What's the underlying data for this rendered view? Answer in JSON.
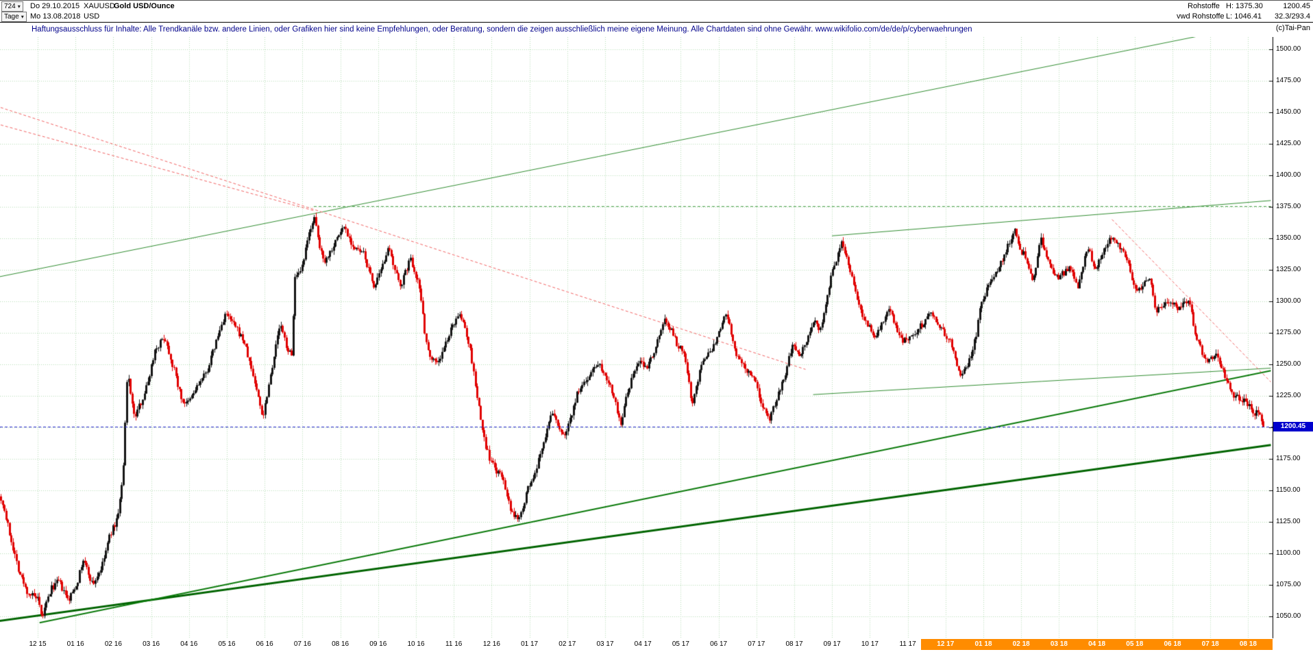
{
  "icons": {
    "caret_down": "▾"
  },
  "header": {
    "bars_count": "724",
    "date_from": "Do 29.10.2015",
    "symbol": "XAUUSD",
    "instrument": "Gold USD/Ounce",
    "period": "Tage",
    "date_to": "Mo 13.08.2018",
    "currency": "USD",
    "right": {
      "category": "Rohstoffe",
      "high_text": "H: 1375.30",
      "last": "1200.45",
      "source": "vwd Rohstoffe",
      "low_text": "L: 1046.41",
      "stat": "32.3/293.4",
      "copyright": "(c)Tai-Pan"
    },
    "disclaimer_text": "Haftungsausschluss für Inhalte: Alle Trendkanäle bzw. andere Linien, oder Grafiken hier sind keine Empfehlungen, oder Beratung, sondern die zeigen ausschließlich meine eigene Meinung. Alle Chartdaten sind ohne Gewähr.",
    "disclaimer_link": "www.wikifolio.com/de/de/p/cyberwaehrungen"
  },
  "chart_data": {
    "type": "candlestick",
    "title": "Gold USD/Ounce (XAUUSD) Tageschart 29.10.2015 - 13.08.2018",
    "bars": 724,
    "high": 1375.3,
    "low": 1046.41,
    "last_price": 1200.45,
    "last_price_label": "1200.45",
    "colors": {
      "up": "#141414",
      "down": "#e00000",
      "grid": "#b4dcb4",
      "last_line": "#2222cc"
    },
    "y_axis": {
      "min": 1040,
      "max": 1512,
      "tick_step": 25
    },
    "y_ticks": [
      "1500.00",
      "1475.00",
      "1450.00",
      "1425.00",
      "1400.00",
      "1375.00",
      "1350.00",
      "1325.00",
      "1300.00",
      "1275.00",
      "1250.00",
      "1225.00",
      "1200.00",
      "1175.00",
      "1150.00",
      "1125.00",
      "1100.00",
      "1075.00",
      "1050.00"
    ],
    "x_labels": [
      "12 15",
      "01 16",
      "02 16",
      "03 16",
      "04 16",
      "05 16",
      "06 16",
      "07 16",
      "08 16",
      "09 16",
      "10 16",
      "11 16",
      "12 16",
      "01 17",
      "02 17",
      "03 17",
      "04 17",
      "05 17",
      "06 17",
      "07 17",
      "08 17",
      "09 17",
      "10 17",
      "11 17",
      "12 17",
      "01 18",
      "02 18",
      "03 18",
      "04 18",
      "05 18",
      "06 18",
      "07 18",
      "08 18"
    ],
    "x_highlight_start_index": 24,
    "x_highlight_color": "#ff8c00",
    "trendlines": [
      {
        "name": "long-term-support",
        "color": "#006400",
        "width": 3,
        "style": "solid",
        "from": [
          -1.1,
          1046
        ],
        "to": [
          32.6,
          1186
        ]
      },
      {
        "name": "support-dec2015-dec2016",
        "color": "#0b7a0b",
        "width": 2,
        "style": "solid",
        "from": [
          0.05,
          1045
        ],
        "to": [
          32.6,
          1245
        ]
      },
      {
        "name": "rising-channel-upper",
        "color": "#2e8b2e",
        "width": 1,
        "style": "solid",
        "from": [
          -1.1,
          1319
        ],
        "to": [
          32.6,
          1522
        ]
      },
      {
        "name": "resistance-sep17-jan18-highs",
        "color": "#2e8b2e",
        "width": 1,
        "style": "solid",
        "from": [
          21.0,
          1352
        ],
        "to": [
          32.6,
          1380
        ]
      },
      {
        "name": "wedge-lower-line",
        "color": "#2e8b2e",
        "width": 1,
        "style": "solid",
        "from": [
          20.5,
          1226
        ],
        "to": [
          32.6,
          1247
        ]
      },
      {
        "name": "high-1375-resistance",
        "color": "#4aa04a",
        "width": 1,
        "style": "dashed",
        "from": [
          7.3,
          1375.3
        ],
        "to": [
          32.6,
          1375.3
        ]
      },
      {
        "name": "falling-trendline-1",
        "color": "#f06060",
        "width": 1,
        "style": "dashed",
        "from": [
          -1.1,
          1455
        ],
        "to": [
          20.3,
          1246
        ]
      },
      {
        "name": "falling-trendline-2",
        "color": "#f06060",
        "width": 1,
        "style": "dashed",
        "from": [
          -1.1,
          1441
        ],
        "to": [
          7.3,
          1372
        ]
      },
      {
        "name": "falling-trendline-right",
        "color": "#f06060",
        "width": 1,
        "style": "dashed",
        "from": [
          28.4,
          1365
        ],
        "to": [
          32.6,
          1236
        ]
      }
    ],
    "hline_last": {
      "price": 1200.45,
      "color": "#2222cc",
      "style": "dashed"
    },
    "anchors": [
      [
        -1.07,
        1147
      ],
      [
        -0.95,
        1142
      ],
      [
        -0.7,
        1110
      ],
      [
        -0.5,
        1086
      ],
      [
        -0.3,
        1070
      ],
      [
        0,
        1063
      ],
      [
        0.1,
        1048
      ],
      [
        0.35,
        1072
      ],
      [
        0.55,
        1078
      ],
      [
        0.8,
        1062
      ],
      [
        1.05,
        1078
      ],
      [
        1.2,
        1095
      ],
      [
        1.45,
        1075
      ],
      [
        1.7,
        1090
      ],
      [
        1.9,
        1114
      ],
      [
        2.1,
        1128
      ],
      [
        2.25,
        1160
      ],
      [
        2.37,
        1245
      ],
      [
        2.55,
        1207
      ],
      [
        2.75,
        1222
      ],
      [
        2.9,
        1235
      ],
      [
        3.1,
        1262
      ],
      [
        3.35,
        1272
      ],
      [
        3.6,
        1246
      ],
      [
        3.8,
        1222
      ],
      [
        3.95,
        1218
      ],
      [
        4.2,
        1232
      ],
      [
        4.45,
        1243
      ],
      [
        4.65,
        1262
      ],
      [
        4.95,
        1290
      ],
      [
        5.15,
        1283
      ],
      [
        5.45,
        1268
      ],
      [
        5.7,
        1240
      ],
      [
        5.95,
        1208
      ],
      [
        6.15,
        1242
      ],
      [
        6.4,
        1282
      ],
      [
        6.6,
        1262
      ],
      [
        6.72,
        1256
      ],
      [
        6.78,
        1318
      ],
      [
        6.95,
        1322
      ],
      [
        7.2,
        1358
      ],
      [
        7.3,
        1367
      ],
      [
        7.45,
        1342
      ],
      [
        7.6,
        1332
      ],
      [
        7.9,
        1350
      ],
      [
        8.1,
        1360
      ],
      [
        8.35,
        1342
      ],
      [
        8.6,
        1338
      ],
      [
        8.9,
        1311
      ],
      [
        9.1,
        1326
      ],
      [
        9.25,
        1344
      ],
      [
        9.45,
        1322
      ],
      [
        9.6,
        1313
      ],
      [
        9.85,
        1334
      ],
      [
        10.05,
        1316
      ],
      [
        10.18,
        1292
      ],
      [
        10.25,
        1268
      ],
      [
        10.4,
        1255
      ],
      [
        10.6,
        1252
      ],
      [
        10.85,
        1272
      ],
      [
        11.1,
        1290
      ],
      [
        11.28,
        1281
      ],
      [
        11.45,
        1258
      ],
      [
        11.6,
        1226
      ],
      [
        11.8,
        1190
      ],
      [
        11.95,
        1174
      ],
      [
        12.15,
        1164
      ],
      [
        12.3,
        1160
      ],
      [
        12.5,
        1132
      ],
      [
        12.68,
        1128
      ],
      [
        12.85,
        1140
      ],
      [
        12.95,
        1152
      ],
      [
        13.15,
        1162
      ],
      [
        13.3,
        1182
      ],
      [
        13.6,
        1212
      ],
      [
        13.75,
        1202
      ],
      [
        13.9,
        1192
      ],
      [
        14.1,
        1210
      ],
      [
        14.25,
        1226
      ],
      [
        14.5,
        1238
      ],
      [
        14.8,
        1252
      ],
      [
        15,
        1242
      ],
      [
        15.2,
        1228
      ],
      [
        15.4,
        1202
      ],
      [
        15.55,
        1222
      ],
      [
        15.75,
        1244
      ],
      [
        15.9,
        1252
      ],
      [
        16.1,
        1248
      ],
      [
        16.3,
        1262
      ],
      [
        16.55,
        1285
      ],
      [
        16.75,
        1278
      ],
      [
        16.9,
        1266
      ],
      [
        17.1,
        1258
      ],
      [
        17.3,
        1218
      ],
      [
        17.55,
        1252
      ],
      [
        17.75,
        1258
      ],
      [
        17.9,
        1266
      ],
      [
        18.1,
        1282
      ],
      [
        18.2,
        1292
      ],
      [
        18.4,
        1262
      ],
      [
        18.55,
        1252
      ],
      [
        18.75,
        1244
      ],
      [
        18.9,
        1242
      ],
      [
        19.1,
        1222
      ],
      [
        19.35,
        1206
      ],
      [
        19.55,
        1226
      ],
      [
        19.75,
        1240
      ],
      [
        19.95,
        1268
      ],
      [
        20.15,
        1258
      ],
      [
        20.35,
        1272
      ],
      [
        20.55,
        1285
      ],
      [
        20.7,
        1276
      ],
      [
        20.85,
        1302
      ],
      [
        20.98,
        1322
      ],
      [
        21.1,
        1332
      ],
      [
        21.25,
        1350
      ],
      [
        21.45,
        1326
      ],
      [
        21.6,
        1308
      ],
      [
        21.8,
        1288
      ],
      [
        21.95,
        1280
      ],
      [
        22.15,
        1272
      ],
      [
        22.35,
        1284
      ],
      [
        22.5,
        1295
      ],
      [
        22.7,
        1278
      ],
      [
        22.85,
        1268
      ],
      [
        23.05,
        1272
      ],
      [
        23.25,
        1278
      ],
      [
        23.45,
        1284
      ],
      [
        23.6,
        1292
      ],
      [
        23.8,
        1282
      ],
      [
        23.95,
        1276
      ],
      [
        24.15,
        1266
      ],
      [
        24.4,
        1240
      ],
      [
        24.6,
        1252
      ],
      [
        24.8,
        1272
      ],
      [
        24.95,
        1302
      ],
      [
        25.15,
        1312
      ],
      [
        25.3,
        1322
      ],
      [
        25.5,
        1334
      ],
      [
        25.7,
        1348
      ],
      [
        25.82,
        1358
      ],
      [
        25.95,
        1342
      ],
      [
        26.1,
        1336
      ],
      [
        26.3,
        1314
      ],
      [
        26.5,
        1350
      ],
      [
        26.7,
        1332
      ],
      [
        26.9,
        1318
      ],
      [
        27.1,
        1322
      ],
      [
        27.3,
        1326
      ],
      [
        27.5,
        1312
      ],
      [
        27.75,
        1344
      ],
      [
        27.95,
        1326
      ],
      [
        28.1,
        1334
      ],
      [
        28.35,
        1352
      ],
      [
        28.55,
        1346
      ],
      [
        28.75,
        1336
      ],
      [
        28.95,
        1316
      ],
      [
        29.05,
        1306
      ],
      [
        29.25,
        1314
      ],
      [
        29.4,
        1318
      ],
      [
        29.55,
        1292
      ],
      [
        29.75,
        1296
      ],
      [
        29.95,
        1300
      ],
      [
        30.15,
        1294
      ],
      [
        30.35,
        1300
      ],
      [
        30.45,
        1298
      ],
      [
        30.6,
        1274
      ],
      [
        30.8,
        1258
      ],
      [
        30.95,
        1252
      ],
      [
        31.15,
        1258
      ],
      [
        31.3,
        1246
      ],
      [
        31.5,
        1232
      ],
      [
        31.65,
        1224
      ],
      [
        31.85,
        1222
      ],
      [
        32,
        1218
      ],
      [
        32.15,
        1212
      ],
      [
        32.3,
        1210
      ],
      [
        32.4,
        1200.45
      ]
    ]
  }
}
